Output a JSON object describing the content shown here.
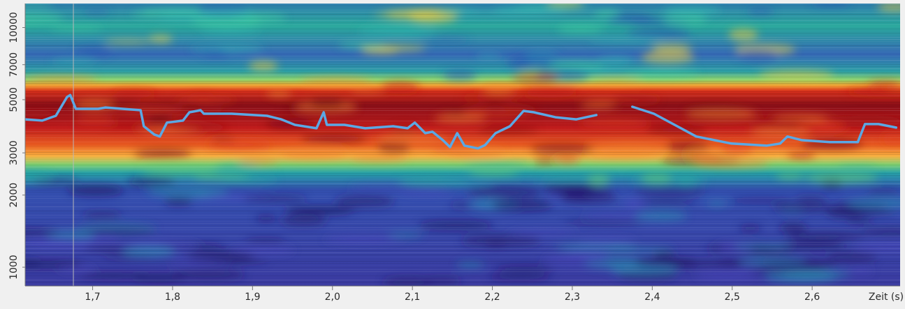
{
  "chart_data": {
    "type": "line",
    "xlabel": "Zeit (s)",
    "xlim": [
      1.6156,
      2.71
    ],
    "ylim": [
      835,
      12600
    ],
    "ylog": true,
    "xticks": [
      {
        "value": 1.7,
        "label": "1,7"
      },
      {
        "value": 1.8,
        "label": "1,8"
      },
      {
        "value": 1.9,
        "label": "1,9"
      },
      {
        "value": 2.0,
        "label": "2,0"
      },
      {
        "value": 2.1,
        "label": "2,1"
      },
      {
        "value": 2.2,
        "label": "2,2"
      },
      {
        "value": 2.3,
        "label": "2,3"
      },
      {
        "value": 2.4,
        "label": "2,4"
      },
      {
        "value": 2.5,
        "label": "2,5"
      },
      {
        "value": 2.6,
        "label": "2,6"
      }
    ],
    "yticks": [
      1000,
      2000,
      3000,
      5000,
      7000,
      10000
    ],
    "x": [
      1.616,
      1.637,
      1.654,
      1.668,
      1.672,
      1.679,
      1.707,
      1.716,
      1.76,
      1.764,
      1.777,
      1.784,
      1.793,
      1.813,
      1.821,
      1.835,
      1.839,
      1.874,
      1.918,
      1.936,
      1.953,
      1.98,
      1.989,
      1.993,
      2.015,
      2.041,
      2.076,
      2.094,
      2.103,
      2.116,
      2.125,
      2.138,
      2.147,
      2.156,
      2.165,
      2.182,
      2.191,
      2.204,
      2.222,
      2.239,
      2.252,
      2.279,
      2.305,
      2.33,
      2.35,
      2.375,
      2.402,
      2.428,
      2.455,
      2.499,
      2.543,
      2.56,
      2.569,
      2.587,
      2.622,
      2.657,
      2.666,
      2.683,
      2.705
    ],
    "series": [
      {
        "color": "#5ba8e4",
        "values": [
          4140,
          4090,
          4285,
          5130,
          5230,
          4580,
          4580,
          4640,
          4520,
          3875,
          3580,
          3510,
          4010,
          4090,
          4430,
          4520,
          4370,
          4370,
          4285,
          4140,
          3925,
          3800,
          4430,
          3925,
          3925,
          3800,
          3875,
          3800,
          4010,
          3625,
          3675,
          3390,
          3170,
          3625,
          3215,
          3130,
          3235,
          3625,
          3875,
          4490,
          4430,
          4225,
          4140,
          4315,
          null,
          4675,
          4370,
          3925,
          3510,
          3280,
          3215,
          3280,
          3510,
          3390,
          3325,
          3325,
          3955,
          3955,
          3825
        ]
      }
    ]
  }
}
